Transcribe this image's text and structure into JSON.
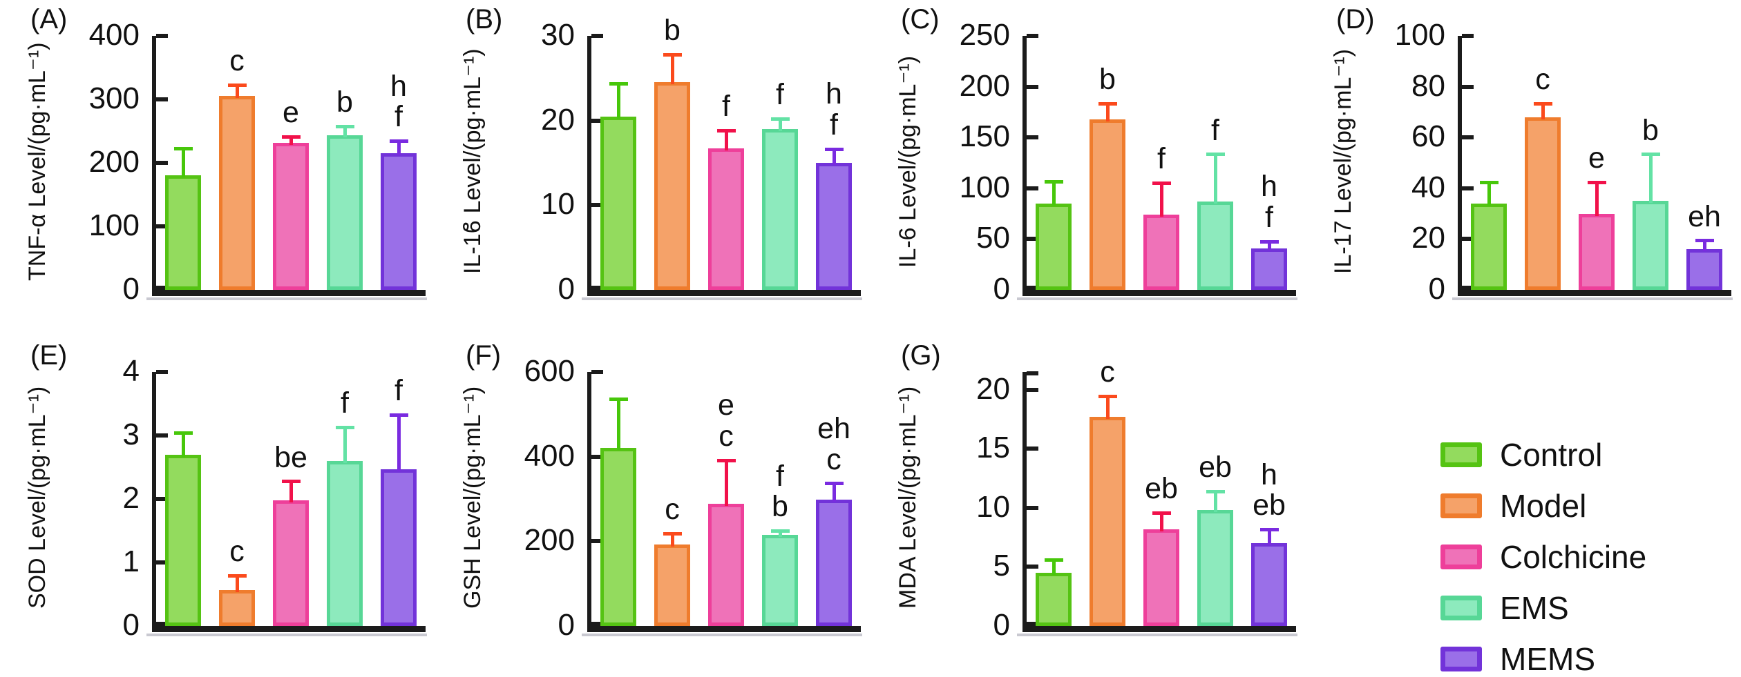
{
  "groups": [
    {
      "name": "Control",
      "fill": "#93db5e",
      "border": "#55c313",
      "error": "#47c70a"
    },
    {
      "name": "Model",
      "fill": "#f5a269",
      "border": "#ef7c2d",
      "error": "#fb4a1c"
    },
    {
      "name": "Colchicine",
      "fill": "#ef72b8",
      "border": "#ee3f9a",
      "error": "#f1114a"
    },
    {
      "name": "EMS",
      "fill": "#8deabd",
      "border": "#57d796",
      "error": "#63e2a5"
    },
    {
      "name": "MEMS",
      "fill": "#9a6fe8",
      "border": "#7233d9",
      "error": "#7a2be0"
    }
  ],
  "legend": {
    "items": [
      {
        "label": "Control"
      },
      {
        "label": "Model"
      },
      {
        "label": "Colchicine"
      },
      {
        "label": "EMS"
      },
      {
        "label": "MEMS"
      }
    ]
  },
  "axis_color": "#1b1b1b",
  "chart_data": [
    {
      "panel": "A",
      "panel_label": "(A)",
      "type": "bar",
      "ylabel": "TNF-α Level/(pg·mL⁻¹)",
      "ylim": [
        0,
        400
      ],
      "yticks": [
        0,
        100,
        200,
        300,
        400
      ],
      "extra_top_tick": false,
      "categories": [
        "Control",
        "Model",
        "Colchicine",
        "EMS",
        "MEMS"
      ],
      "values": [
        180,
        305,
        232,
        243,
        215
      ],
      "errors": [
        45,
        20,
        12,
        17,
        22
      ],
      "annotations": [
        [],
        [
          "c"
        ],
        [
          "e"
        ],
        [
          "b"
        ],
        [
          "h",
          "f"
        ]
      ]
    },
    {
      "panel": "B",
      "panel_label": "(B)",
      "type": "bar",
      "ylabel": "IL-1ϐ Level/(pg·mL⁻¹)",
      "ylim": [
        0,
        30
      ],
      "yticks": [
        0,
        10,
        20,
        30
      ],
      "extra_top_tick": false,
      "categories": [
        "Control",
        "Model",
        "Colchicine",
        "EMS",
        "MEMS"
      ],
      "values": [
        20.5,
        24.5,
        16.7,
        19,
        15
      ],
      "errors": [
        4,
        3.5,
        2.3,
        1.4,
        1.8
      ],
      "annotations": [
        [],
        [
          "b"
        ],
        [
          "f"
        ],
        [
          "f"
        ],
        [
          "h",
          "f"
        ]
      ]
    },
    {
      "panel": "C",
      "panel_label": "(C)",
      "type": "bar",
      "ylabel": "IL-6 Level/(pg·mL⁻¹)",
      "ylim": [
        0,
        250
      ],
      "yticks": [
        0,
        50,
        100,
        150,
        200,
        250
      ],
      "extra_top_tick": false,
      "categories": [
        "Control",
        "Model",
        "Colchicine",
        "EMS",
        "MEMS"
      ],
      "values": [
        85,
        168,
        74,
        87,
        41
      ],
      "errors": [
        23,
        17,
        33,
        48,
        8
      ],
      "annotations": [
        [],
        [
          "b"
        ],
        [
          "f"
        ],
        [
          "f"
        ],
        [
          "h",
          "f"
        ]
      ]
    },
    {
      "panel": "D",
      "panel_label": "(D)",
      "type": "bar",
      "ylabel": "IL-17 Level/(pg·mL⁻¹)",
      "ylim": [
        0,
        100
      ],
      "yticks": [
        0,
        20,
        40,
        60,
        80,
        100
      ],
      "extra_top_tick": false,
      "categories": [
        "Control",
        "Model",
        "Colchicine",
        "EMS",
        "MEMS"
      ],
      "values": [
        34,
        68,
        30,
        35,
        16
      ],
      "errors": [
        9,
        6,
        13,
        19,
        4
      ],
      "annotations": [
        [],
        [
          "c"
        ],
        [
          "e"
        ],
        [
          "b"
        ],
        [
          "eh"
        ]
      ]
    },
    {
      "panel": "E",
      "panel_label": "(E)",
      "type": "bar",
      "ylabel": "SOD Level/(pg·mL⁻¹)",
      "ylim": [
        0,
        4
      ],
      "yticks": [
        0,
        1,
        2,
        3,
        4
      ],
      "extra_top_tick": false,
      "categories": [
        "Control",
        "Model",
        "Colchicine",
        "EMS",
        "MEMS"
      ],
      "values": [
        2.7,
        0.57,
        1.98,
        2.6,
        2.47
      ],
      "errors": [
        0.37,
        0.25,
        0.32,
        0.55,
        0.88
      ],
      "annotations": [
        [],
        [
          "c"
        ],
        [
          "be"
        ],
        [
          "f"
        ],
        [
          "f"
        ]
      ]
    },
    {
      "panel": "F",
      "panel_label": "(F)",
      "type": "bar",
      "ylabel": "GSH Level/(pg·mL⁻¹)",
      "ylim": [
        0,
        600
      ],
      "yticks": [
        0,
        200,
        400,
        600
      ],
      "extra_top_tick": false,
      "categories": [
        "Control",
        "Model",
        "Colchicine",
        "EMS",
        "MEMS"
      ],
      "values": [
        420,
        192,
        288,
        215,
        298
      ],
      "errors": [
        120,
        30,
        107,
        13,
        42
      ],
      "annotations": [
        [],
        [
          "c"
        ],
        [
          "e",
          "c"
        ],
        [
          "f",
          "b"
        ],
        [
          "eh",
          "c"
        ]
      ]
    },
    {
      "panel": "G",
      "panel_label": "(G)",
      "type": "bar",
      "ylabel": "MDA Level/(pg·mL⁻¹)",
      "ylim": [
        0,
        21.5
      ],
      "yticks": [
        0,
        5,
        10,
        15,
        20
      ],
      "extra_top_tick": true,
      "categories": [
        "Control",
        "Model",
        "Colchicine",
        "EMS",
        "MEMS"
      ],
      "values": [
        4.5,
        17.7,
        8.2,
        9.8,
        7.0
      ],
      "errors": [
        1.2,
        1.9,
        1.5,
        1.7,
        1.3
      ],
      "annotations": [
        [],
        [
          "c"
        ],
        [
          "eb"
        ],
        [
          "eb"
        ],
        [
          "h",
          "eb"
        ]
      ]
    }
  ]
}
